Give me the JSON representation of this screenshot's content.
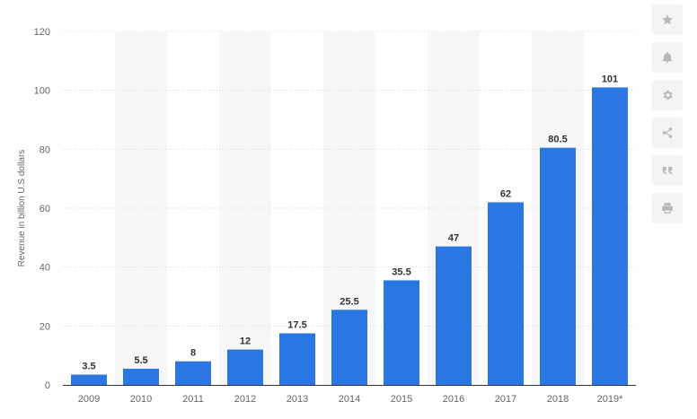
{
  "chart_data": {
    "type": "bar",
    "categories": [
      "2009",
      "2010",
      "2011",
      "2012",
      "2013",
      "2014",
      "2015",
      "2016",
      "2017",
      "2018",
      "2019*"
    ],
    "values": [
      3.5,
      5.5,
      8,
      12,
      17.5,
      25.5,
      35.5,
      47,
      62,
      80.5,
      101
    ],
    "data_labels": [
      "3.5",
      "5.5",
      "8",
      "12",
      "17.5",
      "25.5",
      "35.5",
      "47",
      "62",
      "80.5",
      "101"
    ],
    "title": "",
    "xlabel": "",
    "ylabel": "Revenue in billion U.S dollars",
    "ylim": [
      0,
      120
    ],
    "yticks": [
      0,
      20,
      40,
      60,
      80,
      100,
      120
    ],
    "grid": true,
    "bar_color": "#2a77e3",
    "band_color": "#f7f7f7"
  },
  "toolbar": {
    "items": [
      {
        "name": "favorite",
        "icon": "star-icon"
      },
      {
        "name": "notification",
        "icon": "bell-icon"
      },
      {
        "name": "settings",
        "icon": "gear-icon"
      },
      {
        "name": "share",
        "icon": "share-icon"
      },
      {
        "name": "cite",
        "icon": "quote-icon"
      },
      {
        "name": "print",
        "icon": "print-icon"
      }
    ]
  }
}
